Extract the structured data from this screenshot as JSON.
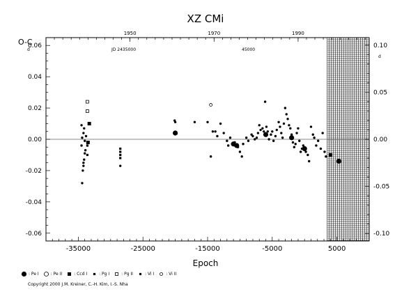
{
  "chart_data": {
    "type": "scatter",
    "title": "XZ CMi",
    "ylabel": "O-C",
    "ylabel_exponent": "d",
    "xlabel": "Epoch",
    "top_axis_note_left": "JD 2435000",
    "top_axis_note_right": "45000",
    "xlim": [
      -40000,
      10000
    ],
    "ylim": [
      -0.065,
      0.065
    ],
    "y2lim": [
      -0.108,
      0.108
    ],
    "x_ticks": [
      -35000,
      -25000,
      -15000,
      -5000,
      5000
    ],
    "y_ticks": [
      -0.06,
      -0.04,
      -0.02,
      0.0,
      0.02,
      0.04,
      0.06
    ],
    "y_tick_labels": [
      "-0.06",
      "-0.04",
      "-0.02",
      "0.00",
      "0.02",
      "0.04",
      "0.06"
    ],
    "y2_ticks": [
      -0.1,
      -0.05,
      0.0,
      0.05,
      0.1
    ],
    "y2_tick_labels": [
      "-0.10",
      "-0.05",
      "0.00",
      "0.05",
      "0.10"
    ],
    "top_ticks": [
      {
        "epoch": -27000,
        "label": "1950"
      },
      {
        "epoch": -14000,
        "label": "1970"
      },
      {
        "epoch": -1000,
        "label": "1990"
      }
    ],
    "hatched_region_from": 3500,
    "series": [
      {
        "name": "Pe I",
        "symbol": "circle-filled-large",
        "points": [
          [
            -20000,
            0.004
          ],
          [
            -11000,
            -0.003
          ],
          [
            -10500,
            -0.004
          ],
          [
            -6000,
            0.003
          ],
          [
            -2000,
            0.001
          ],
          [
            0,
            -0.006
          ],
          [
            5300,
            -0.014
          ]
        ]
      },
      {
        "name": "Pe II",
        "symbol": "circle-open",
        "points": []
      },
      {
        "name": "Ccd I",
        "symbol": "square-filled",
        "points": [
          [
            -33500,
            -0.002
          ],
          [
            -33300,
            0.01
          ],
          [
            4000,
            -0.01
          ]
        ]
      },
      {
        "name": "Pg I",
        "symbol": "square-small-filled",
        "points": [
          [
            -28500,
            -0.006
          ],
          [
            -28500,
            -0.008
          ],
          [
            -28500,
            -0.01
          ],
          [
            -28500,
            -0.012
          ],
          [
            -33600,
            -0.004
          ],
          [
            -33600,
            -0.01
          ]
        ]
      },
      {
        "name": "Pg II",
        "symbol": "square-open",
        "points": [
          [
            -33600,
            0.024
          ],
          [
            -33600,
            0.018
          ]
        ]
      },
      {
        "name": "Vi I",
        "symbol": "dot",
        "points": [
          [
            -34400,
            -0.028
          ],
          [
            -34300,
            -0.02
          ],
          [
            -34200,
            -0.017
          ],
          [
            -34100,
            -0.013
          ],
          [
            -34000,
            -0.009
          ],
          [
            -34500,
            -0.004
          ],
          [
            -34400,
            0.001
          ],
          [
            -34200,
            0.004
          ],
          [
            -34100,
            0.007
          ],
          [
            -34500,
            0.009
          ],
          [
            -33800,
            0.002
          ],
          [
            -33900,
            -0.007
          ],
          [
            -34000,
            -0.001
          ],
          [
            -34200,
            -0.015
          ],
          [
            -28500,
            -0.017
          ],
          [
            -20000,
            0.011
          ],
          [
            -20100,
            0.012
          ],
          [
            -17000,
            0.011
          ],
          [
            -15000,
            0.011
          ],
          [
            -14500,
            -0.011
          ],
          [
            -14200,
            0.005
          ],
          [
            -13800,
            0.005
          ],
          [
            -13500,
            0.002
          ],
          [
            -13000,
            0.01
          ],
          [
            -12500,
            0.004
          ],
          [
            -12000,
            -0.001
          ],
          [
            -11500,
            0.001
          ],
          [
            -11800,
            -0.004
          ],
          [
            -10800,
            -0.002
          ],
          [
            -10300,
            -0.005
          ],
          [
            -10000,
            -0.008
          ],
          [
            -9700,
            -0.011
          ],
          [
            -9500,
            -0.003
          ],
          [
            -9000,
            0.001
          ],
          [
            -8700,
            -0.001
          ],
          [
            -8200,
            0.003
          ],
          [
            -8000,
            0.002
          ],
          [
            -7700,
            0.0
          ],
          [
            -7400,
            0.001
          ],
          [
            -7200,
            0.004
          ],
          [
            -7000,
            0.009
          ],
          [
            -6800,
            0.006
          ],
          [
            -6500,
            0.007
          ],
          [
            -6300,
            0.005
          ],
          [
            -6100,
            0.024
          ],
          [
            -5900,
            0.008
          ],
          [
            -5700,
            0.005
          ],
          [
            -5500,
            0.0
          ],
          [
            -5200,
            0.003
          ],
          [
            -5000,
            0.005
          ],
          [
            -4800,
            -0.001
          ],
          [
            -4500,
            0.002
          ],
          [
            -4300,
            0.006
          ],
          [
            -4000,
            0.011
          ],
          [
            -3800,
            0.008
          ],
          [
            -3600,
            0.004
          ],
          [
            -3400,
            0.001
          ],
          [
            -3200,
            0.01
          ],
          [
            -3000,
            0.02
          ],
          [
            -2800,
            0.016
          ],
          [
            -2600,
            0.013
          ],
          [
            -2400,
            0.009
          ],
          [
            -2200,
            0.007
          ],
          [
            -2000,
            0.003
          ],
          [
            -1800,
            -0.002
          ],
          [
            -1600,
            -0.005
          ],
          [
            -1400,
            -0.003
          ],
          [
            -1200,
            0.004
          ],
          [
            -1000,
            0.007
          ],
          [
            -800,
            -0.001
          ],
          [
            -600,
            -0.008
          ],
          [
            -400,
            -0.006
          ],
          [
            -200,
            -0.004
          ],
          [
            200,
            -0.008
          ],
          [
            500,
            -0.01
          ],
          [
            700,
            -0.014
          ],
          [
            1000,
            0.008
          ],
          [
            1300,
            0.003
          ],
          [
            1500,
            0.001
          ],
          [
            1800,
            -0.004
          ],
          [
            2100,
            -0.001
          ],
          [
            2500,
            -0.006
          ],
          [
            2800,
            0.004
          ],
          [
            3100,
            -0.008
          ],
          [
            3300,
            -0.011
          ]
        ]
      },
      {
        "name": "Vi II",
        "symbol": "circle-open-small",
        "points": [
          [
            -14500,
            0.022
          ]
        ]
      }
    ]
  },
  "legend": [
    {
      "label": ": Pe I",
      "symbol": "circle-filled-large"
    },
    {
      "label": ": Pe II",
      "symbol": "circle-open"
    },
    {
      "label": ": Ccd I",
      "symbol": "square-filled"
    },
    {
      "label": ": Pg I",
      "symbol": "square-small-filled"
    },
    {
      "label": ": Pg II",
      "symbol": "square-open"
    },
    {
      "label": ": Vi I",
      "symbol": "dot"
    },
    {
      "label": ": Vi II",
      "symbol": "circle-open-small"
    }
  ],
  "copyright": "Copyright 2000 J.M. Kreiner, C.-H. Kim, I.-S. Nha"
}
